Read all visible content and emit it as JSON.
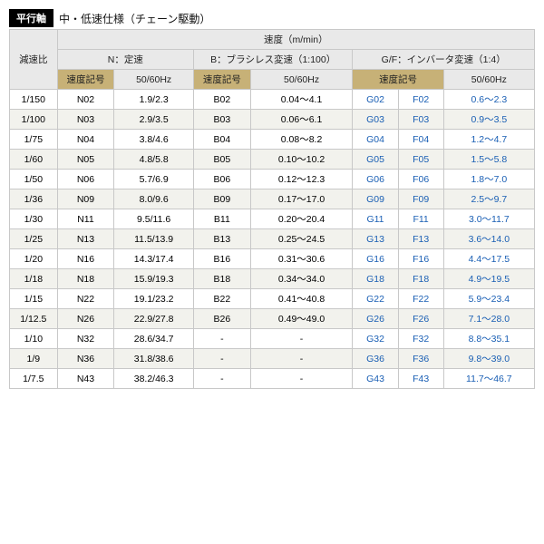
{
  "title_tag": "平行軸",
  "title_text": "中・低速仕様（チェーン駆動）",
  "headers": {
    "ratio": "減速比",
    "speed_group": "速度（m/min）",
    "n_group": "N：定速",
    "b_group": "B：ブラシレス変速（1:100）",
    "gf_group": "G/F：インバータ変速（1:4）",
    "speed_code": "速度記号",
    "hz": "50/60Hz"
  },
  "rows": [
    {
      "ratio": "1/150",
      "n_code": "N02",
      "n_hz": "1.9/2.3",
      "b_code": "B02",
      "b_hz": "0.04～4.1",
      "g_code": "G02",
      "f_code": "F02",
      "gf_hz": "0.6～2.3"
    },
    {
      "ratio": "1/100",
      "n_code": "N03",
      "n_hz": "2.9/3.5",
      "b_code": "B03",
      "b_hz": "0.06～6.1",
      "g_code": "G03",
      "f_code": "F03",
      "gf_hz": "0.9～3.5"
    },
    {
      "ratio": "1/75",
      "n_code": "N04",
      "n_hz": "3.8/4.6",
      "b_code": "B04",
      "b_hz": "0.08～8.2",
      "g_code": "G04",
      "f_code": "F04",
      "gf_hz": "1.2～4.7"
    },
    {
      "ratio": "1/60",
      "n_code": "N05",
      "n_hz": "4.8/5.8",
      "b_code": "B05",
      "b_hz": "0.10～10.2",
      "g_code": "G05",
      "f_code": "F05",
      "gf_hz": "1.5～5.8"
    },
    {
      "ratio": "1/50",
      "n_code": "N06",
      "n_hz": "5.7/6.9",
      "b_code": "B06",
      "b_hz": "0.12～12.3",
      "g_code": "G06",
      "f_code": "F06",
      "gf_hz": "1.8～7.0"
    },
    {
      "ratio": "1/36",
      "n_code": "N09",
      "n_hz": "8.0/9.6",
      "b_code": "B09",
      "b_hz": "0.17～17.0",
      "g_code": "G09",
      "f_code": "F09",
      "gf_hz": "2.5～9.7"
    },
    {
      "ratio": "1/30",
      "n_code": "N11",
      "n_hz": "9.5/11.6",
      "b_code": "B11",
      "b_hz": "0.20～20.4",
      "g_code": "G11",
      "f_code": "F11",
      "gf_hz": "3.0～11.7"
    },
    {
      "ratio": "1/25",
      "n_code": "N13",
      "n_hz": "11.5/13.9",
      "b_code": "B13",
      "b_hz": "0.25～24.5",
      "g_code": "G13",
      "f_code": "F13",
      "gf_hz": "3.6～14.0"
    },
    {
      "ratio": "1/20",
      "n_code": "N16",
      "n_hz": "14.3/17.4",
      "b_code": "B16",
      "b_hz": "0.31～30.6",
      "g_code": "G16",
      "f_code": "F16",
      "gf_hz": "4.4～17.5"
    },
    {
      "ratio": "1/18",
      "n_code": "N18",
      "n_hz": "15.9/19.3",
      "b_code": "B18",
      "b_hz": "0.34～34.0",
      "g_code": "G18",
      "f_code": "F18",
      "gf_hz": "4.9～19.5"
    },
    {
      "ratio": "1/15",
      "n_code": "N22",
      "n_hz": "19.1/23.2",
      "b_code": "B22",
      "b_hz": "0.41～40.8",
      "g_code": "G22",
      "f_code": "F22",
      "gf_hz": "5.9～23.4"
    },
    {
      "ratio": "1/12.5",
      "n_code": "N26",
      "n_hz": "22.9/27.8",
      "b_code": "B26",
      "b_hz": "0.49～49.0",
      "g_code": "G26",
      "f_code": "F26",
      "gf_hz": "7.1～28.0"
    },
    {
      "ratio": "1/10",
      "n_code": "N32",
      "n_hz": "28.6/34.7",
      "b_code": "-",
      "b_hz": "-",
      "g_code": "G32",
      "f_code": "F32",
      "gf_hz": "8.8～35.1"
    },
    {
      "ratio": "1/9",
      "n_code": "N36",
      "n_hz": "31.8/38.6",
      "b_code": "-",
      "b_hz": "-",
      "g_code": "G36",
      "f_code": "F36",
      "gf_hz": "9.8～39.0"
    },
    {
      "ratio": "1/7.5",
      "n_code": "N43",
      "n_hz": "38.2/46.3",
      "b_code": "-",
      "b_hz": "-",
      "g_code": "G43",
      "f_code": "F43",
      "gf_hz": "11.7～46.7"
    }
  ],
  "style": {
    "hdr_gray_bg": "#e9e9e9",
    "hdr_gold_bg": "#c7b177",
    "row_even_bg": "#ffffff",
    "row_odd_bg": "#f2f2ed",
    "border_color": "#c8c8c8",
    "blue_text": "#1a5fb4",
    "title_tag_bg": "#000000",
    "font_size_pt": 10.5
  }
}
